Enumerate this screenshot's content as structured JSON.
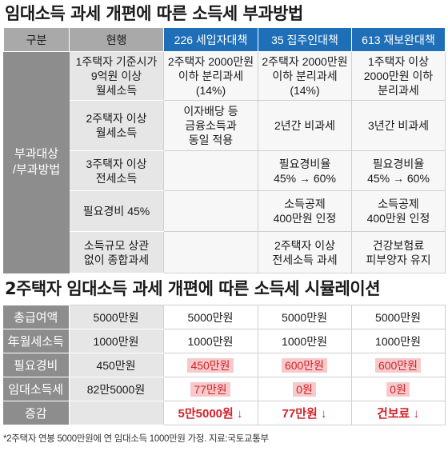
{
  "title1": "임대소득 과세 개편에 따른 소득세 부과방법",
  "table1": {
    "headers": [
      "구분",
      "현행",
      "226 세입자대책",
      "35 집주인대책",
      "613 재보완대책"
    ],
    "category": "부과대상\n/부과방법",
    "rows": [
      [
        "1주택자 기준시가\n9억원 이상\n월세소득",
        "2주택자 2000만원\n이하 분리과세\n(14%)",
        "2주택자 2000만원\n이하 분리과세\n(14%)",
        "1주택자 이상\n2000만원 이하\n분리과세"
      ],
      [
        "2주택자 이상\n월세소득",
        "이자배당 등\n금융소득과\n동일 적용",
        "2년간 비과세",
        "3년간 비과세"
      ],
      [
        "3주택자 이상\n전세소득",
        "",
        "필요경비율\n45% → 60%",
        "필요경비율\n45% → 60%"
      ],
      [
        "필요경비 45%",
        "",
        "소득공제\n400만원 인정",
        "소득공제\n400만원 인정"
      ],
      [
        "소득규모 상관\n없이 종합과세",
        "",
        "2주택자 이상\n전세소득 과세",
        "건강보험료\n피부양자 유지"
      ]
    ]
  },
  "title2": "2주택자 임대소득 과세 개편에 따른 소득세 시뮬레이션",
  "table2": {
    "rows": [
      {
        "label": "총급여액",
        "values": [
          "5000만원",
          "5000만원",
          "5000만원",
          "5000만원"
        ]
      },
      {
        "label": "年월세소득",
        "values": [
          "1000만원",
          "1000만원",
          "1000만원",
          "1000만원"
        ]
      },
      {
        "label": "필요경비",
        "values": [
          "450만원",
          "450만원",
          "600만원",
          "600만원"
        ]
      },
      {
        "label": "임대소득세",
        "values": [
          "82만5000원",
          "77만원",
          "0원",
          "0원"
        ]
      },
      {
        "label": "증감",
        "values": [
          "",
          "5만5000원 ↓",
          "77만원 ↓",
          "건보료 ↓"
        ]
      }
    ]
  },
  "footnote": "*2주택자  연봉 5000만원에 연 임대소득 1000만원 가정. 지료:국토교통부",
  "colors": {
    "header_gray": "#a9a9a9",
    "header_blue": "#1e6fb7",
    "category_gray": "#8d8d8d",
    "highlight_pink": "#f6c9cb",
    "decrease_red": "#d2232a"
  }
}
